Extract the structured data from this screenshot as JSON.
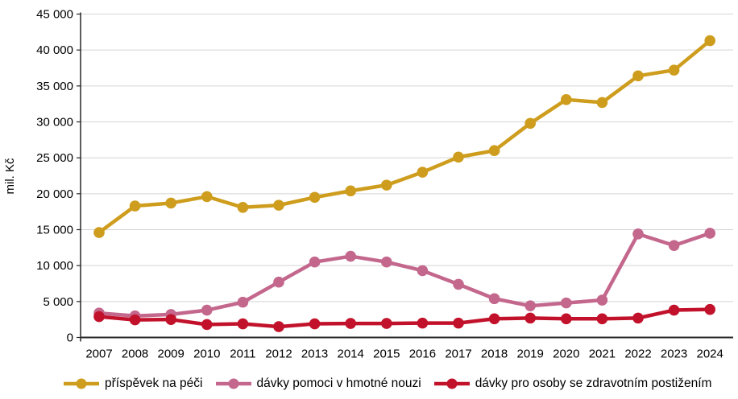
{
  "chart_data": {
    "type": "line",
    "title": "",
    "xlabel": "",
    "ylabel": "mil. Kč",
    "ylim": [
      0,
      45000
    ],
    "y_tick_step": 5000,
    "y_tick_labels": [
      "0",
      "5 000",
      "10 000",
      "15 000",
      "20 000",
      "25 000",
      "30 000",
      "35 000",
      "40 000",
      "45 000"
    ],
    "grid": "horizontal",
    "legend_position": "bottom",
    "x": [
      2007,
      2008,
      2009,
      2010,
      2011,
      2012,
      2013,
      2014,
      2015,
      2016,
      2017,
      2018,
      2019,
      2020,
      2021,
      2022,
      2023,
      2024
    ],
    "series": [
      {
        "name": "příspěvek na péči",
        "color": "#CE9D1D",
        "values": [
          14600,
          18300,
          18700,
          19600,
          18100,
          18400,
          19500,
          20400,
          21200,
          23000,
          25100,
          26000,
          29800,
          33100,
          32700,
          36400,
          37200,
          41300
        ]
      },
      {
        "name": "dávky pomoci v hmotné nouzi",
        "color": "#C4678D",
        "values": [
          3400,
          3000,
          3200,
          3800,
          4900,
          7700,
          10500,
          11300,
          10500,
          9300,
          7400,
          5400,
          4400,
          4800,
          5200,
          14400,
          12800,
          14500
        ]
      },
      {
        "name": "dávky pro osoby se zdravotním postižením",
        "color": "#C2122B",
        "values": [
          2900,
          2450,
          2500,
          1800,
          1900,
          1500,
          1900,
          1950,
          1950,
          2000,
          2000,
          2600,
          2700,
          2600,
          2600,
          2700,
          3800,
          3900
        ]
      }
    ]
  }
}
